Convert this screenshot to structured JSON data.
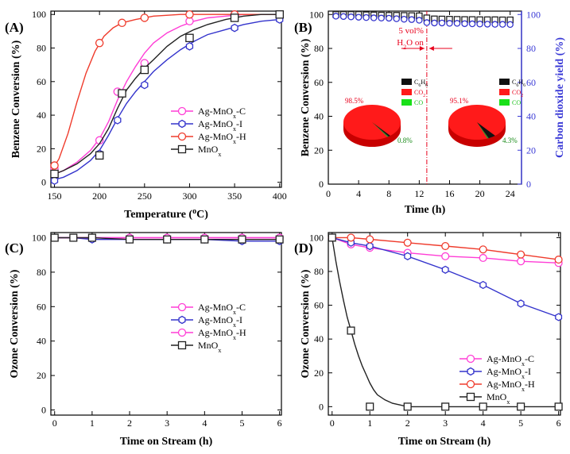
{
  "colors": {
    "pink": "#ff3dd6",
    "blue": "#3333cc",
    "red": "#ef3b2c",
    "black": "#222222",
    "yield_axis": "#3a3ad6",
    "pie_red": "#ff1a1a",
    "pie_black": "#111111",
    "pie_green": "#2a9d2a",
    "h2o_line": "#e8001c"
  },
  "chart_data": [
    {
      "id": "A",
      "type": "line",
      "panel_label": "(A)",
      "xlabel": "Temperature (",
      "xlabel_sup": "o",
      "xlabel_tail": "C)",
      "ylabel": "Benzene Conversion (%)",
      "xlim": [
        146,
        402
      ],
      "ylim": [
        -3,
        102
      ],
      "xticks": [
        150,
        200,
        250,
        300,
        350,
        400
      ],
      "yticks": [
        0,
        20,
        40,
        60,
        80,
        100
      ],
      "legend": [
        {
          "text": "Ag-MnO",
          "sub": "x",
          "tail": "-C",
          "color": "pink",
          "marker": "circle"
        },
        {
          "text": "Ag-MnO",
          "sub": "x",
          "tail": "-I",
          "color": "blue",
          "marker": "hexagon"
        },
        {
          "text": "Ag-MnO",
          "sub": "x",
          "tail": "-H",
          "color": "red",
          "marker": "circle"
        },
        {
          "text": "MnO",
          "sub": "x",
          "tail": "",
          "color": "black",
          "marker": "square"
        }
      ],
      "series": [
        {
          "name": "Ag-MnOx-C",
          "color": "pink",
          "marker": "circle",
          "x": [
            150,
            200,
            220,
            250,
            300,
            350,
            400
          ],
          "y": [
            8,
            25,
            54,
            71,
            96,
            100,
            100
          ],
          "fit_x": [
            146,
            160,
            175,
            190,
            200,
            210,
            220,
            230,
            240,
            250,
            260,
            275,
            290,
            305,
            320,
            340,
            360,
            380,
            400
          ],
          "fit_y": [
            4,
            7,
            12,
            19,
            26,
            36,
            49,
            60,
            69,
            77,
            83,
            89,
            93,
            96,
            98,
            99,
            100,
            100,
            100
          ]
        },
        {
          "name": "Ag-MnOx-I",
          "color": "blue",
          "marker": "hexagon",
          "x": [
            150,
            200,
            220,
            250,
            300,
            350,
            400
          ],
          "y": [
            1,
            17,
            37,
            58,
            81,
            92,
            97
          ],
          "fit_x": [
            146,
            160,
            175,
            190,
            200,
            210,
            220,
            230,
            240,
            250,
            260,
            275,
            290,
            305,
            320,
            340,
            360,
            380,
            400
          ],
          "fit_y": [
            1,
            3,
            7,
            13,
            19,
            28,
            38,
            47,
            54,
            60,
            66,
            73,
            79,
            84,
            88,
            91,
            94,
            96,
            97
          ]
        },
        {
          "name": "Ag-MnOx-H",
          "color": "red",
          "marker": "circle",
          "x": [
            150,
            200,
            225,
            250,
            300,
            350,
            400
          ],
          "y": [
            10,
            83,
            95,
            98,
            100,
            100,
            100
          ],
          "fit_x": [
            146,
            155,
            165,
            175,
            185,
            195,
            205,
            215,
            225,
            240,
            260,
            290,
            330,
            400
          ],
          "fit_y": [
            6,
            14,
            29,
            48,
            65,
            78,
            87,
            92,
            95,
            97,
            99,
            100,
            100,
            100
          ]
        },
        {
          "name": "MnOx",
          "color": "black",
          "marker": "square",
          "x": [
            150,
            200,
            225,
            250,
            300,
            350,
            400
          ],
          "y": [
            5,
            16,
            53,
            67,
            86,
            98,
            100
          ],
          "fit_x": [
            146,
            160,
            175,
            190,
            200,
            210,
            220,
            230,
            240,
            250,
            260,
            275,
            290,
            305,
            320,
            340,
            360,
            380,
            400
          ],
          "fit_y": [
            4,
            7,
            11,
            17,
            23,
            32,
            44,
            55,
            62,
            68,
            73,
            81,
            87,
            91,
            94,
            97,
            99,
            100,
            100
          ]
        }
      ]
    },
    {
      "id": "B",
      "type": "scatter",
      "panel_label": "(B)",
      "xlabel": "Time (h)",
      "ylabel": "Benzene Conversion (%)",
      "ylabel_right": "Carbon dioxide yield (%)",
      "xlim": [
        0,
        25.5
      ],
      "ylim": [
        0,
        102
      ],
      "ylim_right": [
        0,
        102
      ],
      "xticks": [
        0,
        4,
        8,
        12,
        16,
        20,
        24
      ],
      "yticks": [
        0,
        20,
        40,
        60,
        80,
        100
      ],
      "yticks_right": [
        0,
        20,
        40,
        60,
        80,
        100
      ],
      "annotation_line1": "5 vol%",
      "annotation_line2_a": "H",
      "annotation_line2_sub": "2",
      "annotation_line2_b": "O on",
      "h2o_on_time": 13,
      "series": [
        {
          "name": "Benzene conversion",
          "color": "black",
          "marker": "square",
          "x": [
            1,
            2,
            3,
            4,
            5,
            6,
            7,
            8,
            9,
            10,
            11,
            12,
            13,
            14,
            15,
            16,
            17,
            18,
            19,
            20,
            21,
            22,
            23,
            24
          ],
          "y": [
            100,
            100,
            100,
            100,
            99.8,
            99.7,
            99.6,
            99.5,
            99.5,
            99.4,
            99.3,
            99.2,
            98,
            97.4,
            97.3,
            97.2,
            97.1,
            97,
            97,
            96.9,
            96.9,
            96.9,
            96.8,
            96.8
          ]
        },
        {
          "name": "Carbon dioxide yield",
          "color": "blue",
          "marker": "circle",
          "x": [
            1,
            2,
            3,
            4,
            5,
            6,
            7,
            8,
            9,
            10,
            11,
            12,
            13,
            14,
            15,
            16,
            17,
            18,
            19,
            20,
            21,
            22,
            23,
            24
          ],
          "y": [
            99,
            98.8,
            98.6,
            98.4,
            98.2,
            98,
            97.9,
            97.8,
            97.5,
            97.2,
            97,
            96.6,
            95.2,
            95,
            95,
            94.8,
            94.8,
            94.6,
            94.5,
            94.4,
            94.3,
            94.2,
            94.2,
            94.1
          ]
        }
      ],
      "pies": [
        {
          "legend": [
            "C6H6",
            "CO2",
            "CO"
          ],
          "legend_sub": [
            "6",
            "2",
            ""
          ],
          "big_label": "98.5%",
          "small_label": "0.8%",
          "slices": [
            98.5,
            0.8,
            0.7
          ]
        },
        {
          "legend": [
            "C6H6",
            "CO2",
            "CO"
          ],
          "legend_sub": [
            "6",
            "2",
            ""
          ],
          "big_label": "95.1%",
          "small_label": "4.3%",
          "slices": [
            95.1,
            4.3,
            0.6
          ]
        }
      ]
    },
    {
      "id": "C",
      "type": "line",
      "panel_label": "(C)",
      "xlabel": "Time on Stream (h)",
      "ylabel": "Ozone Conversion (%)",
      "xlim": [
        -0.1,
        6.05
      ],
      "ylim": [
        -3,
        103
      ],
      "xticks": [
        0,
        1,
        2,
        3,
        4,
        5,
        6
      ],
      "yticks": [
        0,
        20,
        40,
        60,
        80,
        100
      ],
      "legend": [
        {
          "text": "Ag-MnO",
          "sub": "x",
          "tail": "-C",
          "color": "pink",
          "marker": "circle"
        },
        {
          "text": "Ag-MnO",
          "sub": "x",
          "tail": "-I",
          "color": "blue",
          "marker": "hexagon"
        },
        {
          "text": "Ag-MnO",
          "sub": "x",
          "tail": "-H",
          "color": "pink",
          "marker": "circle"
        },
        {
          "text": "MnO",
          "sub": "x",
          "tail": "",
          "color": "black",
          "marker": "square"
        }
      ],
      "series": [
        {
          "name": "Ag-MnOx-C",
          "color": "pink",
          "marker": "circle",
          "x": [
            0,
            0.5,
            1,
            2,
            3,
            4,
            5,
            6
          ],
          "y": [
            100,
            100,
            100,
            100,
            100,
            100,
            100,
            100
          ]
        },
        {
          "name": "Ag-MnOx-I",
          "color": "blue",
          "marker": "hexagon",
          "x": [
            0,
            0.5,
            1,
            2,
            3,
            4,
            5,
            6
          ],
          "y": [
            100,
            100,
            99,
            99,
            99,
            99,
            98,
            98
          ]
        },
        {
          "name": "Ag-MnOx-H",
          "color": "pink",
          "marker": "circle",
          "x": [
            0,
            0.5,
            1,
            2,
            3,
            4,
            5,
            6
          ],
          "y": [
            100,
            100,
            100,
            100,
            100,
            100,
            100,
            100
          ]
        },
        {
          "name": "MnOx",
          "color": "black",
          "marker": "square",
          "x": [
            0,
            0.5,
            1,
            2,
            3,
            4,
            5,
            6
          ],
          "y": [
            100,
            100,
            100,
            99,
            99,
            99,
            99,
            99
          ]
        }
      ]
    },
    {
      "id": "D",
      "type": "line",
      "panel_label": "(D)",
      "xlabel": "Time on Stream (h)",
      "ylabel": "Ozone Conversion (%)",
      "xlim": [
        -0.1,
        6.05
      ],
      "ylim": [
        -5,
        103
      ],
      "xticks": [
        0,
        1,
        2,
        3,
        4,
        5,
        6
      ],
      "yticks": [
        0,
        20,
        40,
        60,
        80,
        100
      ],
      "legend": [
        {
          "text": "Ag-MnO",
          "sub": "x",
          "tail": "-C",
          "color": "pink",
          "marker": "circle"
        },
        {
          "text": "Ag-MnO",
          "sub": "x",
          "tail": "-I",
          "color": "blue",
          "marker": "hexagon"
        },
        {
          "text": "Ag-MnO",
          "sub": "x",
          "tail": "-H",
          "color": "red",
          "marker": "circle"
        },
        {
          "text": "MnO",
          "sub": "x",
          "tail": "",
          "color": "black",
          "marker": "square"
        }
      ],
      "series": [
        {
          "name": "Ag-MnOx-C",
          "color": "pink",
          "marker": "circle",
          "x": [
            0,
            0.5,
            1,
            2,
            3,
            4,
            5,
            6
          ],
          "y": [
            100,
            96,
            94,
            91,
            89,
            88,
            86,
            85
          ]
        },
        {
          "name": "Ag-MnOx-I",
          "color": "blue",
          "marker": "hexagon",
          "x": [
            0,
            0.5,
            1,
            2,
            3,
            4,
            5,
            6
          ],
          "y": [
            100,
            97,
            95,
            89,
            81,
            72,
            61,
            53
          ]
        },
        {
          "name": "Ag-MnOx-H",
          "color": "red",
          "marker": "circle",
          "x": [
            0,
            0.5,
            1,
            2,
            3,
            4,
            5,
            6
          ],
          "y": [
            100,
            100,
            99,
            97,
            95,
            93,
            90,
            87
          ]
        },
        {
          "name": "MnOx",
          "color": "black",
          "marker": "square",
          "x": [
            0,
            0.5,
            1,
            2,
            3,
            4,
            5,
            6
          ],
          "y": [
            100,
            45,
            0,
            0,
            0,
            0,
            0,
            0
          ],
          "fit_x": [
            0,
            0.1,
            0.2,
            0.3,
            0.4,
            0.5,
            0.6,
            0.7,
            0.8,
            0.9,
            1.0,
            1.1,
            1.2,
            1.4,
            1.6,
            1.8,
            2,
            3,
            4,
            5,
            6
          ],
          "fit_y": [
            100,
            86,
            74,
            63,
            53,
            45,
            37,
            30,
            24,
            19,
            14,
            10,
            7,
            4,
            2,
            1,
            0,
            0,
            0,
            0,
            0
          ]
        }
      ]
    }
  ]
}
